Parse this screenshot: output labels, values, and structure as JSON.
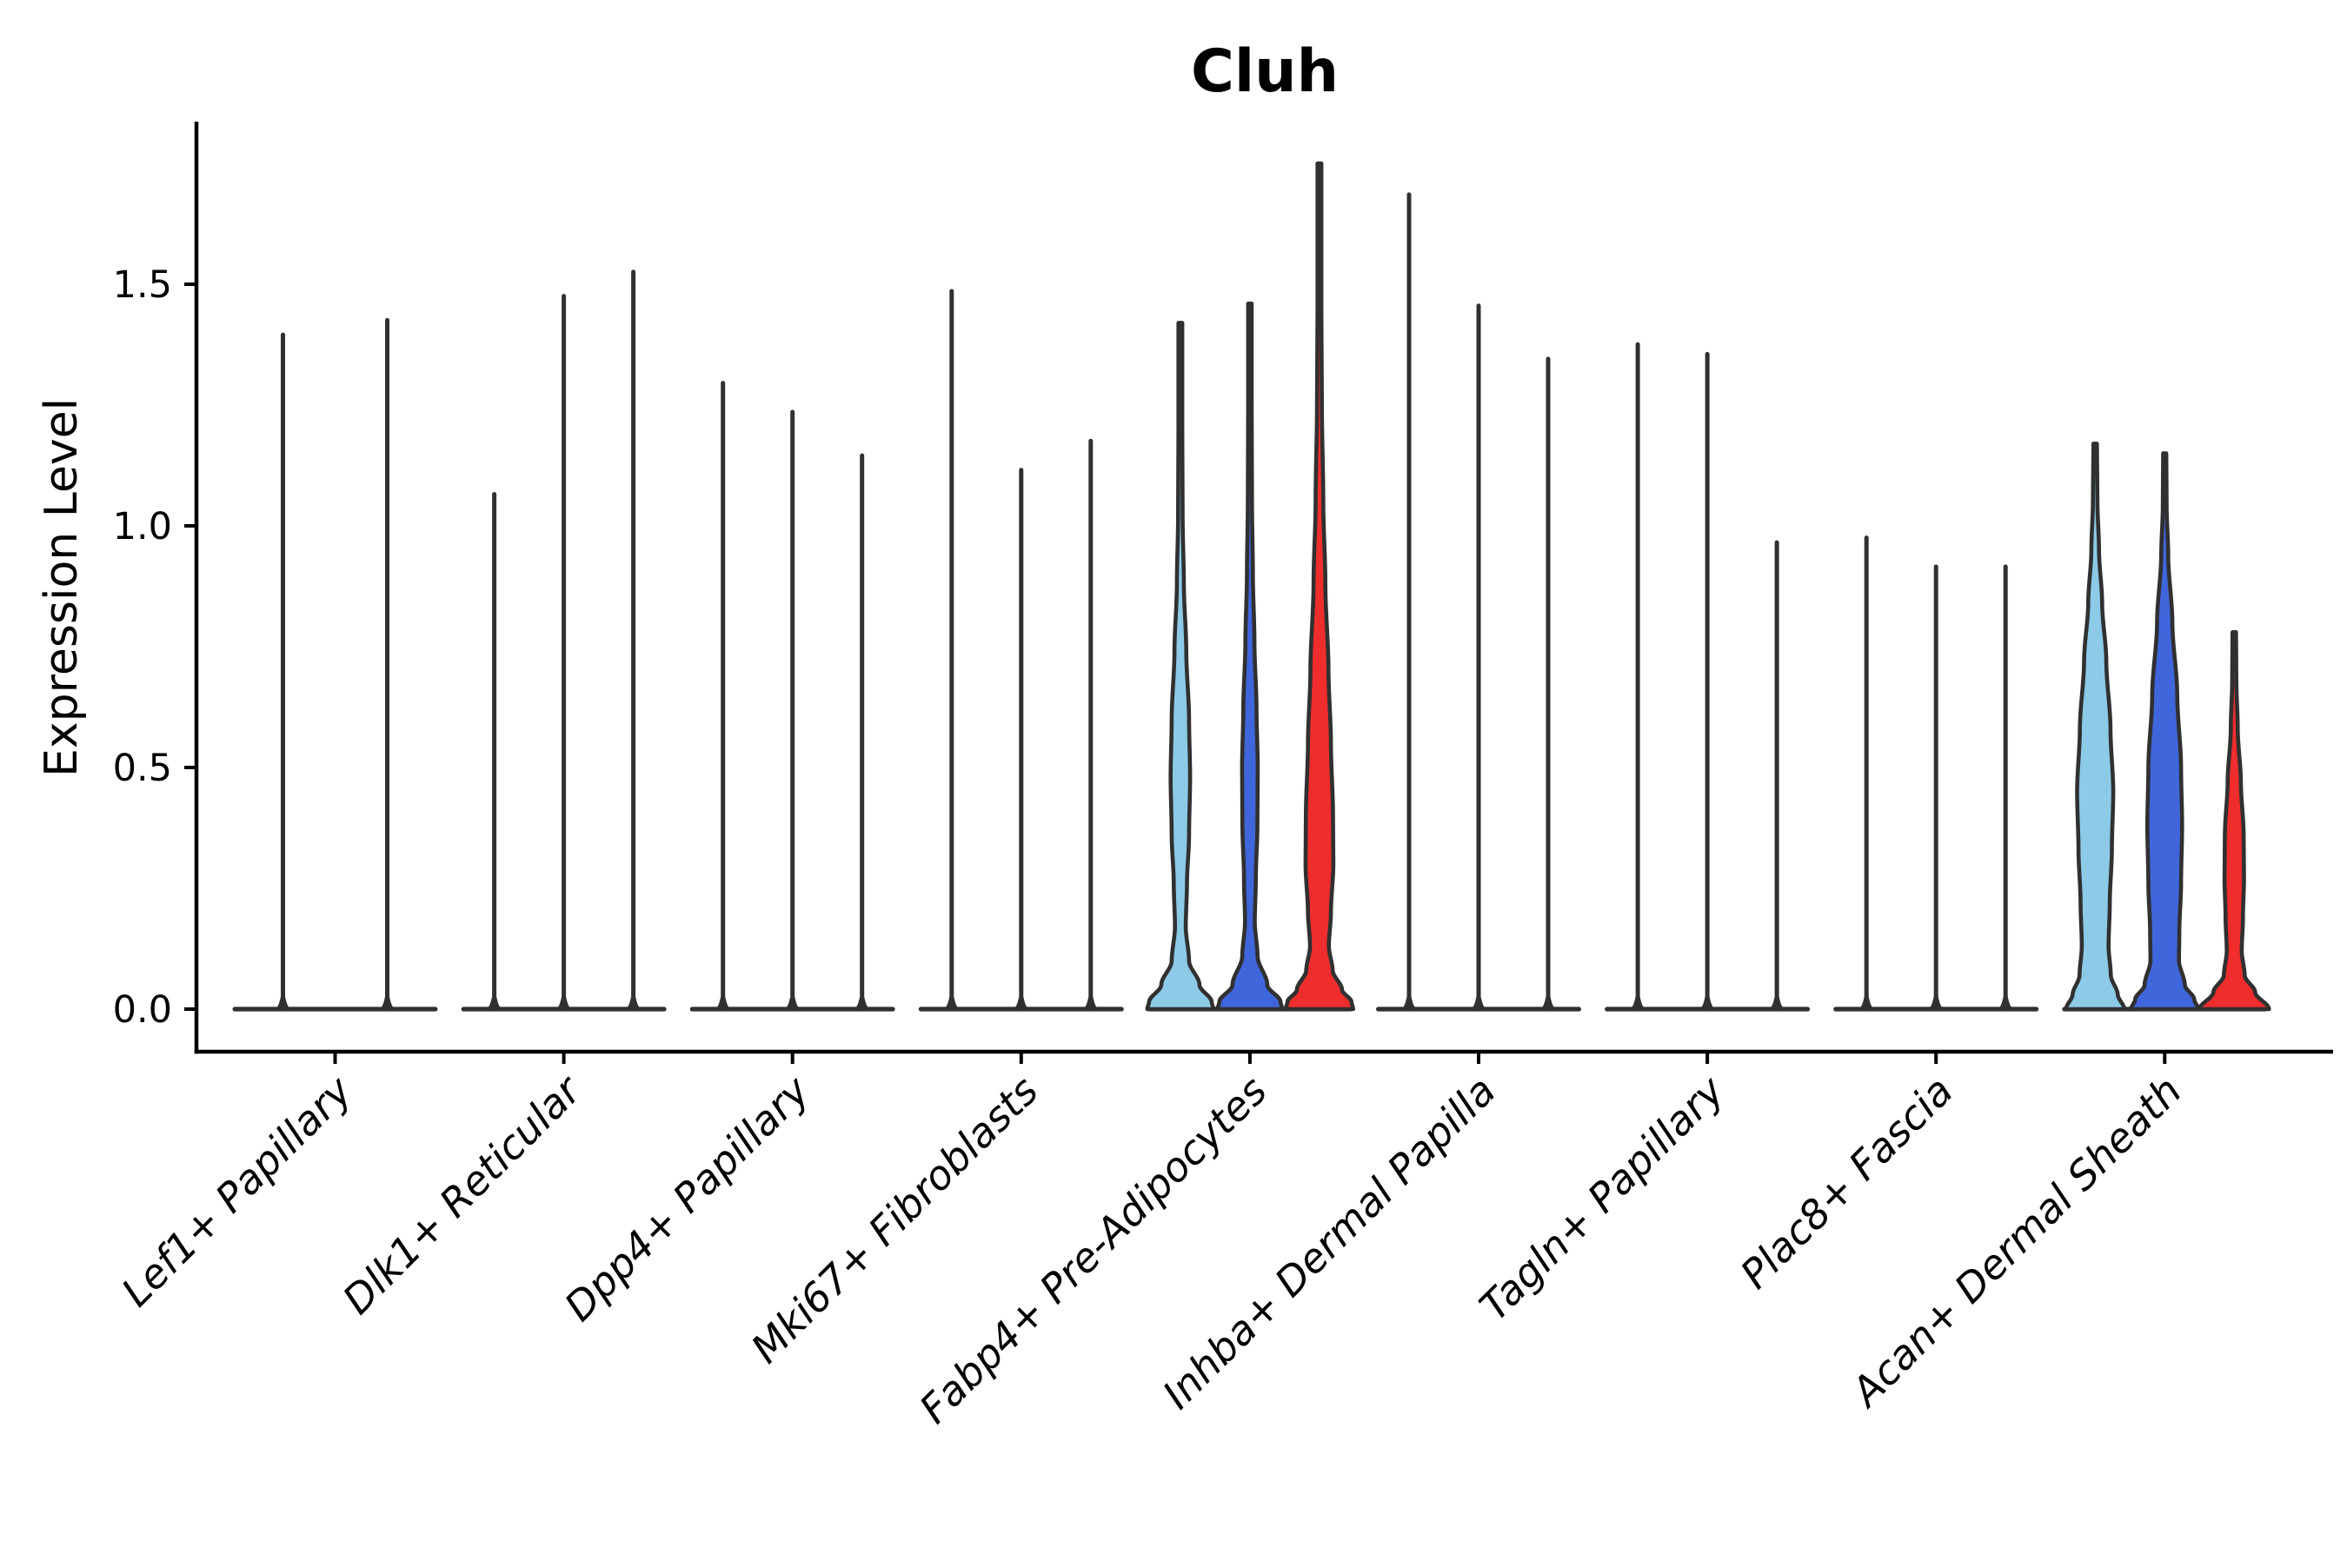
{
  "figure": {
    "title": "Cluh",
    "background_color": "#ffffff"
  },
  "chart_data": {
    "type": "violin",
    "title": "Cluh",
    "xlabel": "",
    "ylabel": "Expression Level",
    "yticks": [
      0.0,
      0.5,
      1.0,
      1.5
    ],
    "ylim": [
      -0.09,
      1.84
    ],
    "grid": false,
    "legend": null,
    "axis_color": "#000000",
    "violin_outline_color": "#303030",
    "split_colors": {
      "light_blue": "#8CCAE8",
      "royal_blue": "#4066DC",
      "red": "#EF2D2D"
    },
    "categories": [
      "Lef1+ Papillary",
      "Dlk1+ Reticular",
      "Dpp4+ Papillary",
      "Mki67+ Fibroblasts",
      "Fabp4+ Pre-Adipocytes",
      "Inhba+ Dermal Papilla",
      "Tagln+ Papillary",
      "Plac8+ Fascia",
      "Acan+ Dermal Sheath"
    ],
    "groups": [
      {
        "category": "Lef1+ Papillary",
        "violins": [
          {
            "style": "spike",
            "max_expression": 1.4,
            "fill": null
          },
          {
            "style": "spike",
            "max_expression": 1.43,
            "fill": null
          }
        ]
      },
      {
        "category": "Dlk1+ Reticular",
        "violins": [
          {
            "style": "spike",
            "max_expression": 1.07,
            "fill": null
          },
          {
            "style": "spike",
            "max_expression": 1.48,
            "fill": null
          },
          {
            "style": "spike",
            "max_expression": 1.53,
            "fill": null
          }
        ]
      },
      {
        "category": "Dpp4+ Papillary",
        "violins": [
          {
            "style": "spike",
            "max_expression": 1.3,
            "fill": null
          },
          {
            "style": "spike",
            "max_expression": 1.24,
            "fill": null
          },
          {
            "style": "spike",
            "max_expression": 1.15,
            "fill": null
          }
        ]
      },
      {
        "category": "Mki67+ Fibroblasts",
        "violins": [
          {
            "style": "spike",
            "max_expression": 1.49,
            "fill": null
          },
          {
            "style": "spike",
            "max_expression": 1.12,
            "fill": null
          },
          {
            "style": "spike",
            "max_expression": 1.18,
            "fill": null
          }
        ]
      },
      {
        "category": "Fabp4+ Pre-Adipocytes",
        "violins": [
          {
            "style": "violin",
            "max_expression": 1.42,
            "fill": "light_blue",
            "profile": [
              [
                1.42,
                0.055
              ],
              [
                1.2,
                0.055
              ],
              [
                1.02,
                0.065
              ],
              [
                0.88,
                0.1
              ],
              [
                0.74,
                0.17
              ],
              [
                0.6,
                0.25
              ],
              [
                0.48,
                0.28
              ],
              [
                0.36,
                0.25
              ],
              [
                0.26,
                0.19
              ],
              [
                0.17,
                0.155
              ],
              [
                0.1,
                0.25
              ],
              [
                0.05,
                0.55
              ],
              [
                0.015,
                0.9
              ],
              [
                0,
                0.95
              ]
            ]
          },
          {
            "style": "violin",
            "max_expression": 1.46,
            "fill": "royal_blue",
            "profile": [
              [
                1.46,
                0.05
              ],
              [
                1.25,
                0.05
              ],
              [
                1.05,
                0.06
              ],
              [
                0.9,
                0.085
              ],
              [
                0.76,
                0.13
              ],
              [
                0.62,
                0.19
              ],
              [
                0.5,
                0.225
              ],
              [
                0.38,
                0.215
              ],
              [
                0.27,
                0.17
              ],
              [
                0.18,
                0.14
              ],
              [
                0.11,
                0.22
              ],
              [
                0.05,
                0.5
              ],
              [
                0.015,
                0.88
              ],
              [
                0,
                0.93
              ]
            ]
          },
          {
            "style": "violin",
            "max_expression": 1.75,
            "fill": "red",
            "profile": [
              [
                1.75,
                0.055
              ],
              [
                1.45,
                0.055
              ],
              [
                1.25,
                0.07
              ],
              [
                1.05,
                0.11
              ],
              [
                0.88,
                0.17
              ],
              [
                0.7,
                0.26
              ],
              [
                0.55,
                0.33
              ],
              [
                0.4,
                0.39
              ],
              [
                0.3,
                0.4
              ],
              [
                0.2,
                0.33
              ],
              [
                0.13,
                0.27
              ],
              [
                0.08,
                0.38
              ],
              [
                0.04,
                0.65
              ],
              [
                0.015,
                0.92
              ],
              [
                0,
                0.97
              ]
            ]
          }
        ]
      },
      {
        "category": "Inhba+ Dermal Papilla",
        "violins": [
          {
            "style": "spike",
            "max_expression": 1.69,
            "fill": null
          },
          {
            "style": "spike",
            "max_expression": 1.46,
            "fill": null
          },
          {
            "style": "spike",
            "max_expression": 1.35,
            "fill": null
          }
        ]
      },
      {
        "category": "Tagln+ Papillary",
        "violins": [
          {
            "style": "spike",
            "max_expression": 1.38,
            "fill": null
          },
          {
            "style": "spike",
            "max_expression": 1.36,
            "fill": null
          },
          {
            "style": "spike",
            "max_expression": 0.97,
            "fill": null
          }
        ]
      },
      {
        "category": "Plac8+ Fascia",
        "violins": [
          {
            "style": "spike",
            "max_expression": 0.98,
            "fill": null
          },
          {
            "style": "spike",
            "max_expression": 0.92,
            "fill": null
          },
          {
            "style": "spike",
            "max_expression": 0.92,
            "fill": null
          }
        ]
      },
      {
        "category": "Acan+ Dermal Sheath",
        "violins": [
          {
            "style": "violin",
            "max_expression": 1.17,
            "fill": "light_blue",
            "profile": [
              [
                1.17,
                0.05
              ],
              [
                1.05,
                0.065
              ],
              [
                0.95,
                0.11
              ],
              [
                0.84,
                0.2
              ],
              [
                0.72,
                0.32
              ],
              [
                0.58,
                0.44
              ],
              [
                0.45,
                0.52
              ],
              [
                0.33,
                0.48
              ],
              [
                0.22,
                0.42
              ],
              [
                0.13,
                0.385
              ],
              [
                0.07,
                0.45
              ],
              [
                0.03,
                0.65
              ],
              [
                0,
                0.84
              ]
            ]
          },
          {
            "style": "violin",
            "max_expression": 1.15,
            "fill": "royal_blue",
            "profile": [
              [
                1.15,
                0.045
              ],
              [
                1.04,
                0.055
              ],
              [
                0.94,
                0.1
              ],
              [
                0.8,
                0.22
              ],
              [
                0.65,
                0.36
              ],
              [
                0.5,
                0.47
              ],
              [
                0.38,
                0.5
              ],
              [
                0.26,
                0.47
              ],
              [
                0.16,
                0.42
              ],
              [
                0.1,
                0.41
              ],
              [
                0.05,
                0.58
              ],
              [
                0.02,
                0.85
              ],
              [
                0,
                0.97
              ]
            ]
          },
          {
            "style": "violin",
            "max_expression": 0.78,
            "fill": "red",
            "profile": [
              [
                0.78,
                0.05
              ],
              [
                0.68,
                0.06
              ],
              [
                0.58,
                0.1
              ],
              [
                0.47,
                0.19
              ],
              [
                0.36,
                0.27
              ],
              [
                0.27,
                0.28
              ],
              [
                0.19,
                0.25
              ],
              [
                0.12,
                0.215
              ],
              [
                0.07,
                0.3
              ],
              [
                0.035,
                0.6
              ],
              [
                0,
                1.0
              ]
            ]
          }
        ]
      }
    ]
  }
}
